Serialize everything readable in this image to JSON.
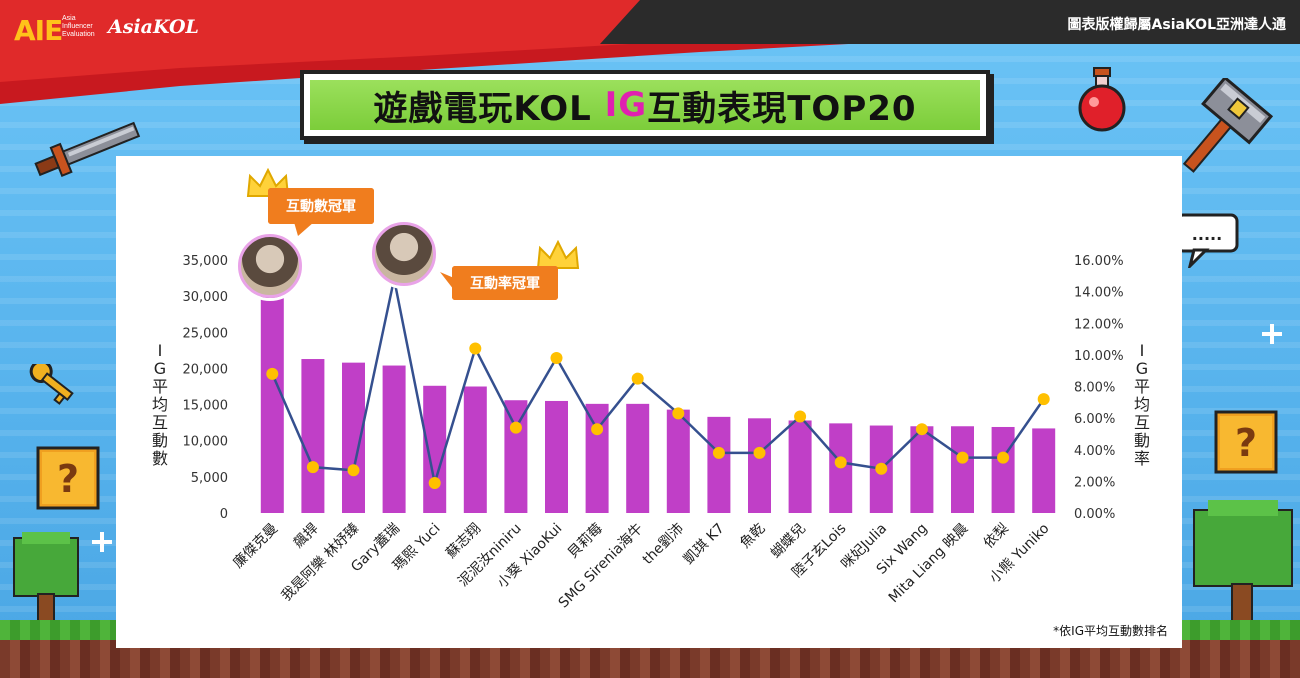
{
  "header": {
    "logo_aie": "AIE",
    "logo_sub": "Asia\nInfluencer\nEvaluation",
    "logo_asiakol": "AsiaKOL",
    "copyright": "圖表版權歸屬AsiaKOL亞洲達人通"
  },
  "title": {
    "part1": "遊戲電玩KOL ",
    "part2": "IG",
    "part3": "互動表現TOP20"
  },
  "callouts": {
    "engagement_champion": "互動數冠軍",
    "rate_champion": "互動率冠軍"
  },
  "footnote": "*依IG平均互動數排名",
  "colors": {
    "bar": "#c03fc7",
    "line": "#35508f",
    "dot": "#ffc000",
    "title_bg": "#7ccd3a",
    "title_highlight": "#e020b0",
    "callout": "#f07d1e"
  },
  "chart_data": {
    "type": "bar",
    "categories": [
      "廉傑克曼",
      "飆捍",
      "我是阿樂 林妤臻",
      "Gary蓋瑞",
      "瑪熙 Yuci",
      "蘇志翔",
      "泥泥汝niniru",
      "小葵 XiaoKui",
      "貝莉莓",
      "SMG Sirenia海牛",
      "the劉沛",
      "凱琪 K7",
      "魚乾",
      "蝴蝶兒",
      "陸子玄Lois",
      "咪妃Julia",
      "Six Wang",
      "Mita Liang 映晨",
      "依梨",
      "小熊 Yuniko"
    ],
    "series": [
      {
        "name": "IG平均互動數",
        "type": "bar",
        "axis": "left",
        "values": [
          30000,
          21300,
          20800,
          20400,
          17600,
          17500,
          15600,
          15500,
          15100,
          15100,
          14300,
          13300,
          13100,
          12800,
          12400,
          12100,
          12000,
          12000,
          11900,
          11700
        ]
      },
      {
        "name": "IG平均互動率",
        "type": "line",
        "axis": "right",
        "values": [
          8.8,
          2.9,
          2.7,
          14.8,
          1.9,
          10.4,
          5.4,
          9.8,
          5.3,
          8.5,
          6.3,
          3.8,
          3.8,
          6.1,
          3.2,
          2.8,
          5.3,
          3.5,
          3.5,
          7.2
        ]
      }
    ],
    "ylabel_left": "IG平均互動數",
    "ylabel_right": "IG平均互動率",
    "ylim_left": [
      0,
      35000
    ],
    "ylim_right": [
      0,
      16
    ],
    "yticks_left": [
      "0",
      "5,000",
      "10,000",
      "15,000",
      "20,000",
      "25,000",
      "30,000",
      "35,000"
    ],
    "yticks_right": [
      "0.00%",
      "2.00%",
      "4.00%",
      "6.00%",
      "8.00%",
      "10.00%",
      "12.00%",
      "14.00%",
      "16.00%"
    ],
    "grid": false,
    "legend": "none"
  }
}
